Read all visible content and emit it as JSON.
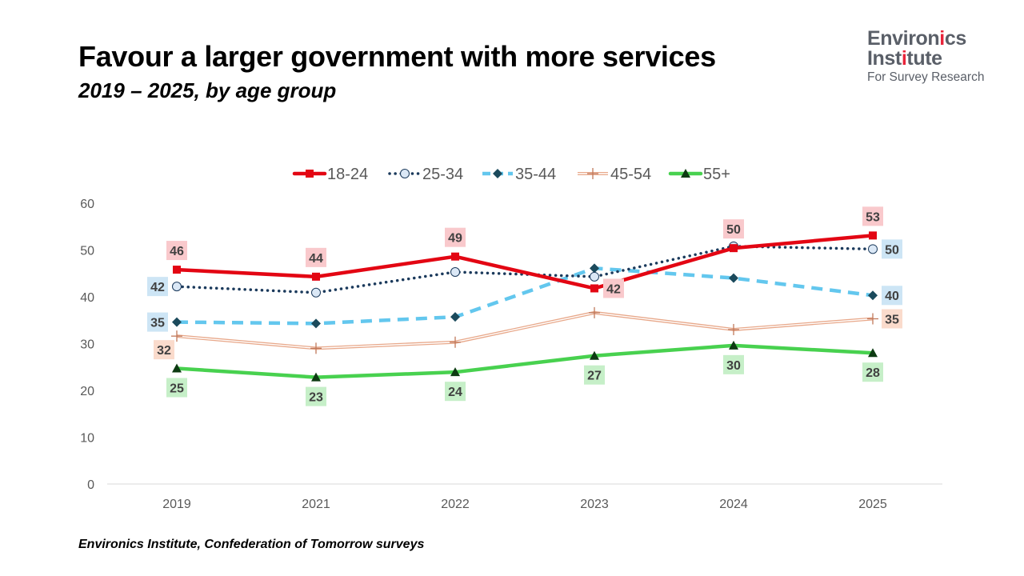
{
  "title": "Favour a larger government with more services",
  "subtitle": "2019 – 2025, by age group",
  "logo": {
    "line1": "Environics",
    "line2": "Institute",
    "line3": "For Survey Research",
    "accent_color": "#e8243a"
  },
  "source": "Environics Institute, Confederation of Tomorrow surveys",
  "chart_data": {
    "type": "line",
    "categories": [
      "2019",
      "2021",
      "2022",
      "2023",
      "2024",
      "2025"
    ],
    "ylim": [
      0,
      60
    ],
    "yticks": [
      0,
      10,
      20,
      30,
      40,
      50,
      60
    ],
    "grid": false,
    "legend_position": "top-center",
    "series": [
      {
        "name": "18-24",
        "values": [
          46,
          44,
          49,
          42,
          50,
          53
        ],
        "actual": [
          45.8,
          44.3,
          48.6,
          41.8,
          50.4,
          53.1
        ],
        "color": "#e30613",
        "dash": "solid",
        "marker": "square",
        "label_bg": "#f9c9cc",
        "label_pos": [
          "above",
          "above",
          "above",
          "right",
          "above",
          "above"
        ]
      },
      {
        "name": "25-34",
        "values": [
          42,
          41,
          45,
          44,
          50,
          50
        ],
        "actual": [
          42.2,
          40.9,
          45.3,
          44.3,
          50.8,
          50.2
        ],
        "color": "#1b3a5c",
        "dash": "dotted",
        "marker": "circle",
        "label_bg": "#cde5f5",
        "show_labels": [
          true,
          false,
          false,
          false,
          false,
          true
        ],
        "label_pos": [
          "left",
          "",
          "",
          "",
          "",
          "right"
        ]
      },
      {
        "name": "35-44",
        "values": [
          35,
          34,
          36,
          46,
          44,
          40
        ],
        "actual": [
          34.6,
          34.3,
          35.7,
          46.1,
          44.0,
          40.3
        ],
        "color": "#63c7ee",
        "dash": "dashed",
        "marker": "diamond",
        "label_bg": "#cde5f5",
        "show_labels": [
          true,
          false,
          false,
          false,
          false,
          true
        ],
        "label_pos": [
          "left",
          "",
          "",
          "",
          "",
          "right"
        ]
      },
      {
        "name": "45-54",
        "values": [
          32,
          29,
          30,
          37,
          33,
          35
        ],
        "actual": [
          31.6,
          29.0,
          30.3,
          36.6,
          33.0,
          35.3
        ],
        "color": "#e8a88a",
        "dash": "double",
        "marker": "plus",
        "label_bg": "#fadbcc",
        "show_labels": [
          true,
          false,
          false,
          false,
          false,
          true
        ],
        "label_pos": [
          "left-below",
          "",
          "",
          "",
          "",
          "right"
        ]
      },
      {
        "name": "55+",
        "values": [
          25,
          23,
          24,
          27,
          30,
          28
        ],
        "actual": [
          24.7,
          22.8,
          23.9,
          27.4,
          29.6,
          28.0
        ],
        "color": "#48d14f",
        "dash": "solid",
        "marker": "triangle",
        "label_bg": "#c6efc8",
        "label_pos": [
          "below",
          "below",
          "below",
          "below",
          "below",
          "below"
        ]
      }
    ]
  }
}
